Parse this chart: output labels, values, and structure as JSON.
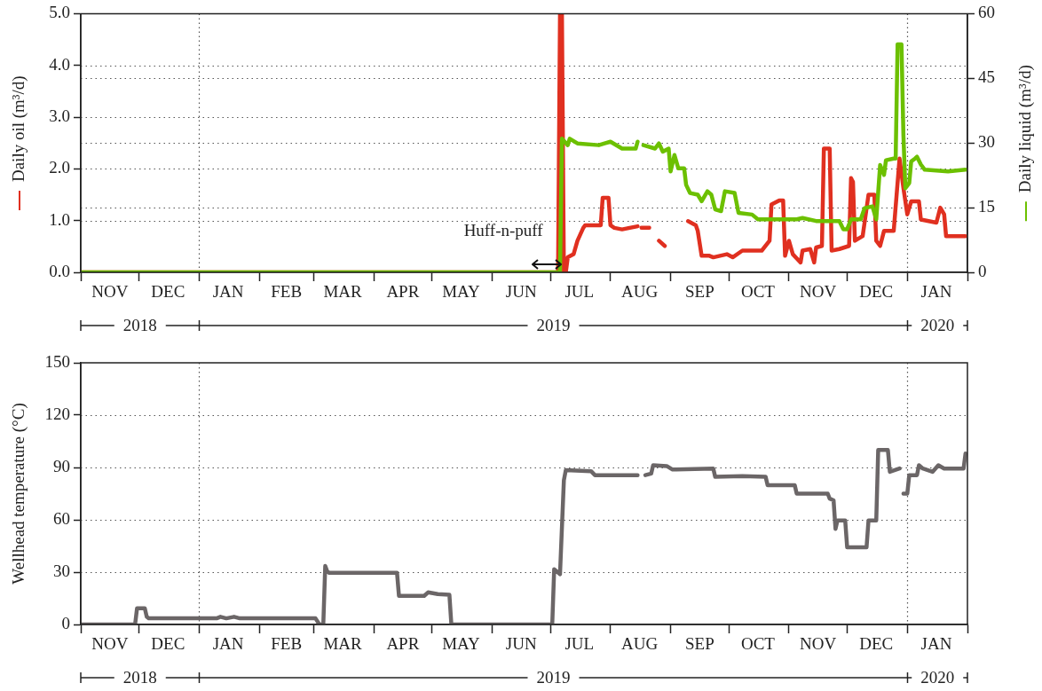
{
  "chart_data": [
    {
      "type": "line",
      "ylabel": "Daily oil (m³/d)",
      "y2label": "Daily liquid (m³/d)",
      "xlim": [
        "2018-11-01",
        "2020-02-01"
      ],
      "xticks": [
        {
          "value": "2018-11-01",
          "label": null
        },
        {
          "value": "2018-11-16",
          "label": "NOV"
        },
        {
          "value": "2018-12-01",
          "label": null
        },
        {
          "value": "2018-12-16",
          "label": "DEC"
        },
        {
          "value": "2019-01-01",
          "label": null
        },
        {
          "value": "2019-01-16",
          "label": "JAN"
        },
        {
          "value": "2019-02-01",
          "label": null
        },
        {
          "value": "2019-02-15",
          "label": "FEB"
        },
        {
          "value": "2019-03-01",
          "label": null
        },
        {
          "value": "2019-03-16",
          "label": "MAR"
        },
        {
          "value": "2019-04-01",
          "label": null
        },
        {
          "value": "2019-04-16",
          "label": "APR"
        },
        {
          "value": "2019-05-01",
          "label": null
        },
        {
          "value": "2019-05-16",
          "label": "MAY"
        },
        {
          "value": "2019-06-01",
          "label": null
        },
        {
          "value": "2019-06-16",
          "label": "JUN"
        },
        {
          "value": "2019-07-01",
          "label": null
        },
        {
          "value": "2019-07-16",
          "label": "JUL"
        },
        {
          "value": "2019-08-01",
          "label": null
        },
        {
          "value": "2019-08-16",
          "label": "AUG"
        },
        {
          "value": "2019-09-01",
          "label": null
        },
        {
          "value": "2019-09-16",
          "label": "SEP"
        },
        {
          "value": "2019-10-01",
          "label": null
        },
        {
          "value": "2019-10-16",
          "label": "OCT"
        },
        {
          "value": "2019-11-01",
          "label": null
        },
        {
          "value": "2019-11-16",
          "label": "NOV"
        },
        {
          "value": "2019-12-01",
          "label": null
        },
        {
          "value": "2019-12-16",
          "label": "DEC"
        },
        {
          "value": "2020-01-01",
          "label": null
        },
        {
          "value": "2020-01-16",
          "label": "JAN"
        },
        {
          "value": "2020-02-01",
          "label": null
        }
      ],
      "ylim": [
        0,
        5
      ],
      "yticks": [
        {
          "value": 0,
          "label": "0.0"
        },
        {
          "value": 1,
          "label": "1.0"
        },
        {
          "value": 2,
          "label": "2.0"
        },
        {
          "value": 3,
          "label": "3.0"
        },
        {
          "value": 4,
          "label": "4.0"
        },
        {
          "value": 5,
          "label": "5.0"
        }
      ],
      "y2lim": [
        0,
        60
      ],
      "y2ticks": [
        0,
        15,
        30,
        45,
        60
      ],
      "grid": "y",
      "ref_lines": [
        {
          "axis": "x",
          "value": "2019-01-01",
          "line_style": "dotted"
        },
        {
          "axis": "x",
          "value": "2020-01-01",
          "line_style": "dotted"
        }
      ],
      "annotations": [
        {
          "text": "Huff-n-puff",
          "x": "2019-06-29",
          "y": 0.05
        },
        "2018",
        "2019",
        "2020"
      ],
      "series": [
        {
          "color": "#e03020",
          "x": [
            "2018-11-01",
            "2019-07-05",
            "2019-07-06",
            "2019-07-07",
            "2019-07-08",
            "2019-07-09",
            "2019-07-10",
            "2019-07-13",
            "2019-07-15",
            "2019-07-18",
            "2019-07-19",
            "2019-07-27",
            "2019-07-28",
            "2019-07-31",
            "2019-08-01",
            "2019-08-03",
            "2019-08-07",
            "2019-08-15",
            "2019-08-16",
            "2019-08-17",
            "2019-08-21",
            "2019-08-23",
            "2019-08-26",
            "2019-08-29",
            "2019-09-05",
            "2019-09-10",
            "2019-09-14",
            "2019-09-15",
            "2019-09-17",
            "2019-09-21",
            "2019-09-23",
            "2019-09-30",
            "2019-10-03",
            "2019-10-08",
            "2019-10-18",
            "2019-10-22",
            "2019-10-23",
            "2019-10-27",
            "2019-10-29",
            "2019-10-30",
            "2019-11-01",
            "2019-11-03",
            "2019-11-07",
            "2019-11-08",
            "2019-11-12",
            "2019-11-14",
            "2019-11-15",
            "2019-11-18",
            "2019-11-19",
            "2019-11-22",
            "2019-11-23",
            "2019-11-27",
            "2019-12-02",
            "2019-12-03",
            "2019-12-04",
            "2019-12-05",
            "2019-12-09",
            "2019-12-12",
            "2019-12-15",
            "2019-12-16",
            "2019-12-18",
            "2019-12-20",
            "2019-12-25",
            "2019-12-28",
            "2019-12-30",
            "2020-01-01",
            "2020-01-03",
            "2020-01-07",
            "2020-01-08",
            "2020-01-16",
            "2020-01-18",
            "2020-01-20",
            "2020-01-21",
            "2020-01-31"
          ],
          "values": [
            0,
            0,
            5.0,
            5.0,
            0,
            0,
            0.29,
            0.35,
            0.61,
            0.86,
            0.91,
            0.91,
            1.44,
            1.44,
            0.91,
            0.86,
            0.83,
            0.89,
            null,
            0.86,
            0.86,
            null,
            0.61,
            0.51,
            null,
            0.99,
            0.91,
            0.8,
            0.32,
            0.32,
            0.29,
            0.35,
            0.29,
            0.42,
            0.42,
            0.61,
            1.31,
            1.39,
            1.39,
            0.32,
            0.61,
            0.35,
            0.19,
            0.42,
            0.45,
            0.19,
            0.48,
            0.51,
            2.39,
            2.39,
            0.42,
            0.45,
            0.51,
            1.82,
            1.75,
            0.61,
            0.7,
            1.5,
            1.5,
            0.61,
            0.51,
            0.8,
            0.8,
            2.2,
            1.63,
            1.12,
            1.37,
            1.37,
            1.02,
            0.96,
            1.25,
            1.12,
            0.7,
            0.7
          ]
        },
        {
          "color": "#6cc000",
          "axis": "y2",
          "x": [
            "2018-11-01",
            "2019-07-06",
            "2019-07-07",
            "2019-07-10",
            "2019-07-11",
            "2019-07-15",
            "2019-07-26",
            "2019-07-29",
            "2019-08-01",
            "2019-08-07",
            "2019-08-14",
            "2019-08-15",
            "2019-08-16",
            "2019-08-18",
            "2019-08-24",
            "2019-08-26",
            "2019-08-28",
            "2019-08-31",
            "2019-09-01",
            "2019-09-03",
            "2019-09-05",
            "2019-09-08",
            "2019-09-09",
            "2019-09-11",
            "2019-09-15",
            "2019-09-17",
            "2019-09-20",
            "2019-09-22",
            "2019-09-24",
            "2019-09-27",
            "2019-09-29",
            "2019-10-04",
            "2019-10-06",
            "2019-10-13",
            "2019-10-16",
            "2019-10-27",
            "2019-11-05",
            "2019-11-08",
            "2019-11-15",
            "2019-11-27",
            "2019-11-29",
            "2019-12-01",
            "2019-12-03",
            "2019-12-08",
            "2019-12-10",
            "2019-12-14",
            "2019-12-16",
            "2019-12-18",
            "2019-12-20",
            "2019-12-21",
            "2019-12-25",
            "2019-12-26",
            "2019-12-27",
            "2019-12-29",
            "2019-12-30",
            "2019-12-31",
            "2020-01-02",
            "2020-01-03",
            "2020-01-05",
            "2020-01-06",
            "2020-01-08",
            "2020-01-10",
            "2020-01-22",
            "2020-01-31"
          ],
          "values": [
            0,
            0,
            31,
            29.5,
            31,
            29.9,
            29.5,
            29.9,
            30.3,
            28.7,
            28.7,
            30.3,
            null,
            29.5,
            28.7,
            29.9,
            28,
            28.7,
            23.4,
            27.2,
            24.1,
            24.1,
            20.3,
            18.4,
            18,
            16.5,
            18.8,
            18,
            14.6,
            14.2,
            18.8,
            18.4,
            13.8,
            13.4,
            12.3,
            12.3,
            12.3,
            12.6,
            11.9,
            11.9,
            10,
            10,
            12.3,
            12.3,
            14.9,
            15.3,
            12.3,
            24.9,
            22.6,
            26,
            26.4,
            26.4,
            52.9,
            52.9,
            31.8,
            19.5,
            20.7,
            25.7,
            26.4,
            26.8,
            25,
            23.8,
            23.4,
            23.8
          ]
        }
      ]
    },
    {
      "type": "line",
      "ylabel": "Wellhead temperature (°C)",
      "xlim": [
        "2018-11-01",
        "2020-02-01"
      ],
      "xticks": [
        {
          "value": "2018-11-01",
          "label": null
        },
        {
          "value": "2018-11-16",
          "label": "NOV"
        },
        {
          "value": "2018-12-01",
          "label": null
        },
        {
          "value": "2018-12-16",
          "label": "DEC"
        },
        {
          "value": "2019-01-01",
          "label": null
        },
        {
          "value": "2019-01-16",
          "label": "JAN"
        },
        {
          "value": "2019-02-01",
          "label": null
        },
        {
          "value": "2019-02-15",
          "label": "FEB"
        },
        {
          "value": "2019-03-01",
          "label": null
        },
        {
          "value": "2019-03-16",
          "label": "MAR"
        },
        {
          "value": "2019-04-01",
          "label": null
        },
        {
          "value": "2019-04-16",
          "label": "APR"
        },
        {
          "value": "2019-05-01",
          "label": null
        },
        {
          "value": "2019-05-16",
          "label": "MAY"
        },
        {
          "value": "2019-06-01",
          "label": null
        },
        {
          "value": "2019-06-16",
          "label": "JUN"
        },
        {
          "value": "2019-07-01",
          "label": null
        },
        {
          "value": "2019-07-16",
          "label": "JUL"
        },
        {
          "value": "2019-08-01",
          "label": null
        },
        {
          "value": "2019-08-16",
          "label": "AUG"
        },
        {
          "value": "2019-09-01",
          "label": null
        },
        {
          "value": "2019-09-16",
          "label": "SEP"
        },
        {
          "value": "2019-10-01",
          "label": null
        },
        {
          "value": "2019-10-16",
          "label": "OCT"
        },
        {
          "value": "2019-11-01",
          "label": null
        },
        {
          "value": "2019-11-16",
          "label": "NOV"
        },
        {
          "value": "2019-12-01",
          "label": null
        },
        {
          "value": "2019-12-16",
          "label": "DEC"
        },
        {
          "value": "2020-01-01",
          "label": null
        },
        {
          "value": "2020-01-16",
          "label": "JAN"
        },
        {
          "value": "2020-02-01",
          "label": null
        }
      ],
      "ylim": [
        0,
        150
      ],
      "yticks": [
        0,
        30,
        60,
        90,
        120,
        150
      ],
      "grid": "y",
      "ref_lines": [
        {
          "axis": "x",
          "value": "2019-01-01",
          "line_style": "dotted"
        },
        {
          "axis": "x",
          "value": "2020-01-01",
          "line_style": "dotted"
        }
      ],
      "annotations": [
        "2018",
        "2019",
        "2020"
      ],
      "series": [
        {
          "color": "#6b6667",
          "x": [
            "2018-11-01",
            "2018-11-29",
            "2018-11-30",
            "2018-12-04",
            "2018-12-05",
            "2018-12-06",
            "2019-01-10",
            "2019-01-12",
            "2019-01-15",
            "2019-01-19",
            "2019-01-22",
            "2019-03-02",
            "2019-03-04",
            "2019-03-06",
            "2019-03-07",
            "2019-03-08",
            "2019-03-09",
            "2019-04-13",
            "2019-04-14",
            "2019-04-27",
            "2019-04-29",
            "2019-05-04",
            "2019-05-10",
            "2019-05-11",
            "2019-07-02",
            "2019-07-03",
            "2019-07-06",
            "2019-07-08",
            "2019-07-09",
            "2019-07-22",
            "2019-07-24",
            "2019-08-15",
            "2019-08-17",
            "2019-08-19",
            "2019-08-22",
            "2019-08-23",
            "2019-08-30",
            "2019-09-02",
            "2019-09-23",
            "2019-09-24",
            "2019-10-08",
            "2019-10-20",
            "2019-10-21",
            "2019-11-04",
            "2019-11-05",
            "2019-11-21",
            "2019-11-22",
            "2019-11-24",
            "2019-11-25",
            "2019-11-26",
            "2019-11-30",
            "2019-12-01",
            "2019-12-11",
            "2019-12-12",
            "2019-12-16",
            "2019-12-17",
            "2019-12-22",
            "2019-12-23",
            "2019-12-28",
            "2019-12-29",
            "2019-12-30",
            "2020-01-01",
            "2020-01-02",
            "2020-01-06",
            "2020-01-07",
            "2020-01-09",
            "2020-01-14",
            "2020-01-17",
            "2020-01-20",
            "2020-01-30",
            "2020-01-31"
          ],
          "values": [
            0,
            0,
            9.3,
            9.3,
            4.4,
            3.5,
            3.5,
            4.4,
            3.5,
            4.4,
            3.5,
            3.5,
            0,
            0,
            33.5,
            30.5,
            29.6,
            29.6,
            16.4,
            16.4,
            18.4,
            17.4,
            17,
            0,
            0,
            31.7,
            28.8,
            82.7,
            88.5,
            87.9,
            85.6,
            85.6,
            null,
            85.6,
            86.5,
            91.3,
            90.8,
            88.8,
            89.4,
            84.6,
            85,
            84.6,
            79.8,
            79.8,
            75,
            75,
            72.1,
            71.2,
            54.8,
            59.6,
            59.6,
            44.2,
            44.2,
            59.6,
            59.6,
            100,
            100,
            87.5,
            89.4,
            null,
            75,
            75,
            85.6,
            85.6,
            91.3,
            89.4,
            87.5,
            91.3,
            89.4,
            89.4,
            98
          ]
        }
      ]
    }
  ]
}
